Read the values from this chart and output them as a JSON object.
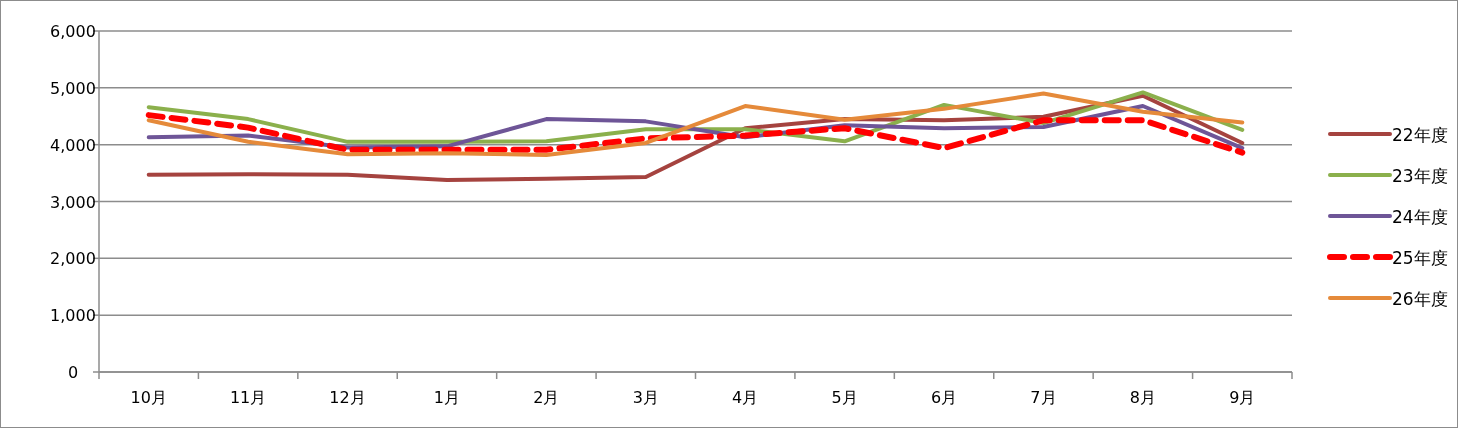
{
  "chart_data": {
    "type": "line",
    "categories": [
      "10月",
      "11月",
      "12月",
      "1月",
      "2月",
      "3月",
      "4月",
      "5月",
      "6月",
      "7月",
      "8月",
      "9月"
    ],
    "ylim": [
      0,
      6000
    ],
    "yticks": [
      {
        "value": 0,
        "label": "0"
      },
      {
        "value": 1000,
        "label": "1,000"
      },
      {
        "value": 2000,
        "label": "2,000"
      },
      {
        "value": 3000,
        "label": "3,000"
      },
      {
        "value": 4000,
        "label": "4,000"
      },
      {
        "value": 5000,
        "label": "5,000"
      },
      {
        "value": 6000,
        "label": "6,000"
      }
    ],
    "grid": "y",
    "legend": "right",
    "marker": "none",
    "series": [
      {
        "name": "22年度",
        "color": "#a5433f",
        "line_style": "solid",
        "values": [
          3470,
          3480,
          3470,
          3380,
          3400,
          3430,
          4290,
          4450,
          4430,
          4490,
          4860,
          4030
        ]
      },
      {
        "name": "23年度",
        "color": "#8bb04c",
        "line_style": "solid",
        "values": [
          4660,
          4450,
          4050,
          4050,
          4060,
          4270,
          4270,
          4060,
          4700,
          4380,
          4920,
          4260
        ]
      },
      {
        "name": "24年度",
        "color": "#6e5597",
        "line_style": "solid",
        "values": [
          4130,
          4160,
          3950,
          3970,
          4450,
          4410,
          4130,
          4340,
          4290,
          4310,
          4680,
          3940
        ]
      },
      {
        "name": "25年度",
        "color": "#ff0000",
        "line_style": "dashed",
        "values": [
          4520,
          4300,
          3910,
          3910,
          3910,
          4110,
          4160,
          4290,
          3940,
          4430,
          4430,
          3860
        ]
      },
      {
        "name": "26年度",
        "color": "#e58a3a",
        "line_style": "solid",
        "values": [
          4430,
          4050,
          3830,
          3850,
          3820,
          4030,
          4680,
          4440,
          4630,
          4900,
          4580,
          4390
        ]
      }
    ]
  }
}
